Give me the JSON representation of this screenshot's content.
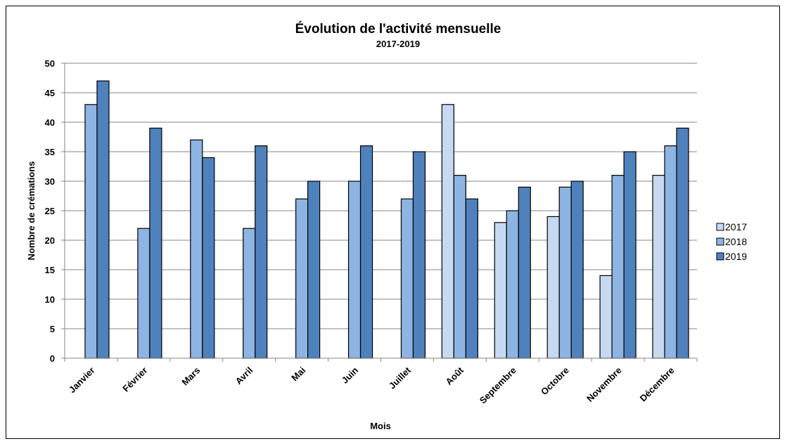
{
  "chart_data": {
    "type": "bar",
    "title": "Évolution de l'activité mensuelle",
    "subtitle": "2017-2019",
    "xlabel": "Mois",
    "ylabel": "Nombre de crémations",
    "ylim": [
      0,
      50
    ],
    "yticks": [
      0,
      5,
      10,
      15,
      20,
      25,
      30,
      35,
      40,
      45,
      50
    ],
    "grid": true,
    "legend_position": "right",
    "categories": [
      "Janvier",
      "Février",
      "Mars",
      "Avril",
      "Mai",
      "Juin",
      "Juillet",
      "Août",
      "Septembre",
      "Octobre",
      "Novembre",
      "Décembre"
    ],
    "series": [
      {
        "name": "2017",
        "color": "#c6d9f1",
        "values": [
          null,
          null,
          null,
          null,
          null,
          null,
          null,
          43,
          23,
          24,
          14,
          31
        ]
      },
      {
        "name": "2018",
        "color": "#8db4e2",
        "values": [
          43,
          22,
          37,
          22,
          27,
          30,
          27,
          31,
          25,
          29,
          31,
          36
        ]
      },
      {
        "name": "2019",
        "color": "#4f81bd",
        "values": [
          47,
          39,
          34,
          36,
          30,
          36,
          35,
          27,
          29,
          30,
          35,
          39
        ]
      }
    ]
  }
}
